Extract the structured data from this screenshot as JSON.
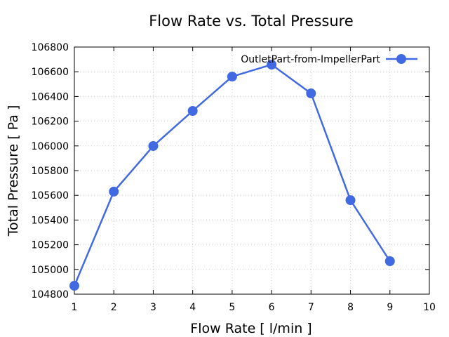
{
  "chart_data": {
    "type": "line",
    "title": "Flow Rate vs. Total Pressure",
    "xlabel": "Flow Rate [ l/min ]",
    "ylabel": "Total Pressure [ Pa ]",
    "xlim": [
      1,
      10
    ],
    "ylim": [
      104800,
      106800
    ],
    "xticks": [
      1,
      2,
      3,
      4,
      5,
      6,
      7,
      8,
      9,
      10
    ],
    "yticks": [
      104800,
      105000,
      105200,
      105400,
      105600,
      105800,
      106000,
      106200,
      106400,
      106600,
      106800
    ],
    "grid": true,
    "legend_position": "top-right",
    "series": [
      {
        "name": "OutletPart-from-ImpellerPart",
        "color": "#4169e1",
        "x": [
          1,
          2,
          3,
          4,
          5,
          6,
          7,
          8,
          9
        ],
        "y": [
          104868,
          105630,
          105999,
          106283,
          106561,
          106658,
          106425,
          105561,
          105067
        ]
      }
    ]
  }
}
